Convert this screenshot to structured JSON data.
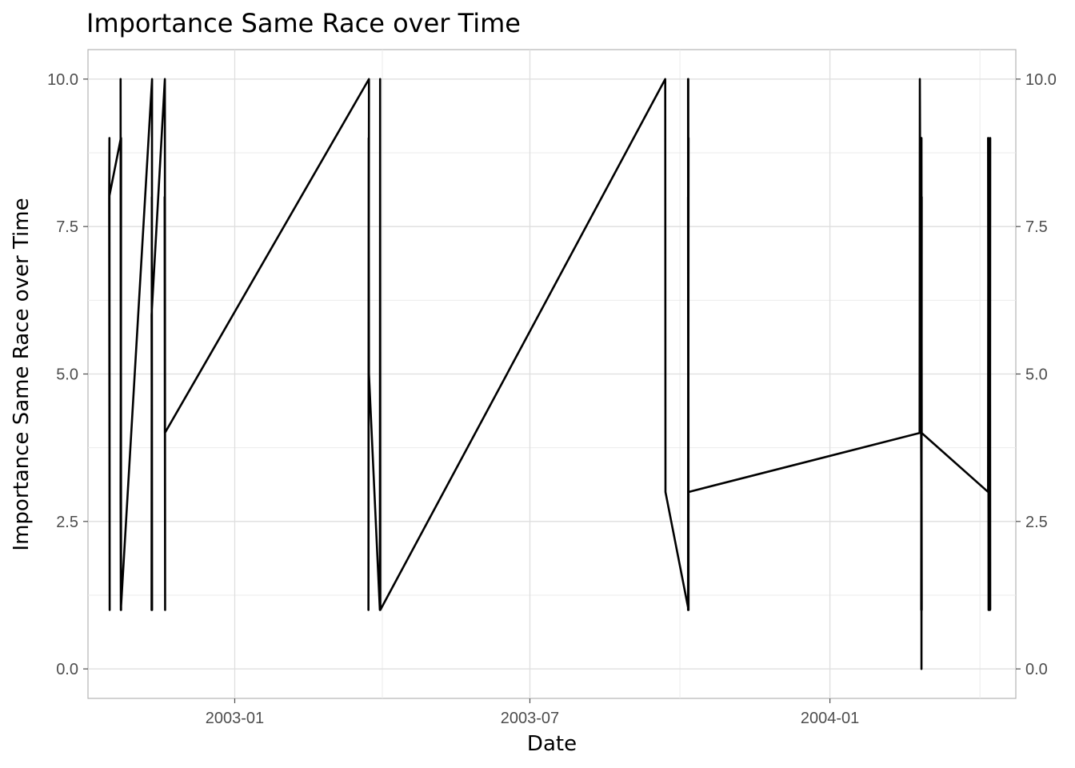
{
  "chart_data": {
    "type": "line",
    "title": "Importance Same Race over Time",
    "xlabel": "Date",
    "ylabel": "Importance Same Race over Time",
    "x_ticks": [
      "2003-01",
      "2003-07",
      "2004-01"
    ],
    "y_ticks": [
      "0.0",
      "2.5",
      "5.0",
      "7.5",
      "10.0"
    ],
    "secondary_y_axis": true,
    "ylim": [
      -0.5,
      10.5
    ],
    "xlim": [
      "2002-10-03",
      "2004-04-24"
    ],
    "grid": true,
    "line_color": "#000000",
    "series": [
      {
        "x": [
          "2002-10-16",
          "2002-10-16",
          "2002-10-16",
          "2002-10-16",
          "2002-10-23",
          "2002-10-23",
          "2002-10-23",
          "2002-10-23",
          "2002-10-23",
          "2002-10-23",
          "2002-10-23",
          "2002-11-11",
          "2002-11-11",
          "2002-11-11",
          "2002-11-11",
          "2002-11-11",
          "2002-11-19",
          "2002-11-19",
          "2002-11-19",
          "2002-11-19",
          "2003-03-24",
          "2003-03-24",
          "2003-03-24",
          "2003-03-24",
          "2003-03-31",
          "2003-03-31",
          "2003-03-31",
          "2003-09-22",
          "2003-09-22",
          "2003-10-06",
          "2003-10-06",
          "2003-10-06",
          "2003-10-06",
          "2003-10-06",
          "2003-10-06",
          "2003-10-06",
          "2003-10-06",
          "2003-10-06",
          "2003-10-06",
          "2004-02-25",
          "2004-02-25",
          "2004-02-26",
          "2004-02-26",
          "2004-02-26",
          "2004-02-26",
          "2004-02-26",
          "2004-02-26",
          "2004-02-26",
          "2004-04-07",
          "2004-04-07",
          "2004-04-07",
          "2004-04-07",
          "2004-04-08",
          "2004-04-08",
          "2004-04-08",
          "2004-04-08",
          "2004-04-08"
        ],
        "y": [
          8,
          9,
          1,
          8,
          9,
          1,
          10,
          1,
          9,
          3,
          1,
          10,
          1,
          8,
          1,
          6,
          10,
          1,
          8,
          4,
          10,
          1,
          9,
          5,
          1,
          10,
          1,
          10,
          3,
          1,
          10,
          1,
          9,
          1,
          10,
          1,
          8,
          1,
          3,
          4,
          10,
          1,
          9,
          0,
          8,
          1,
          9,
          4,
          3,
          9,
          1,
          9,
          1,
          9,
          1,
          8,
          1
        ]
      }
    ]
  }
}
